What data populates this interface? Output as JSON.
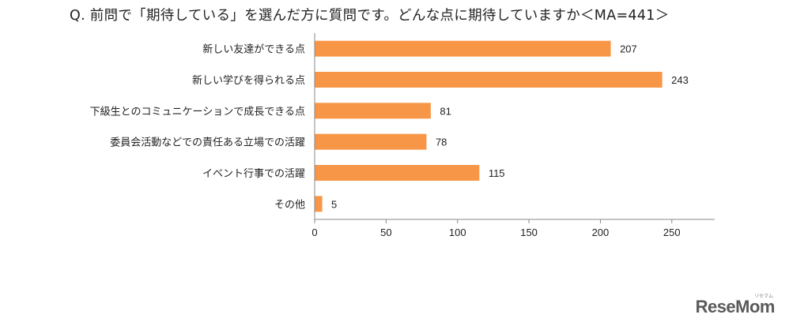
{
  "title": "Q. 前問で「期待している」を選んだ方に質問です。どんな点に期待していますか＜MA=441＞",
  "chart_data": {
    "type": "bar",
    "orientation": "horizontal",
    "categories": [
      "新しい友達ができる点",
      "新しい学びを得られる点",
      "下級生とのコミュニケーションで成長できる点",
      "委員会活動などでの責任ある立場での活躍",
      "イベント行事での活躍",
      "その他"
    ],
    "values": [
      207,
      243,
      81,
      78,
      115,
      5
    ],
    "xlim": [
      0,
      280
    ],
    "xticks": [
      0,
      50,
      100,
      150,
      200,
      250
    ],
    "grid": false,
    "bar_color": "#f79646"
  },
  "watermark": {
    "text": "ReseMom",
    "subtext": "リセマム"
  }
}
